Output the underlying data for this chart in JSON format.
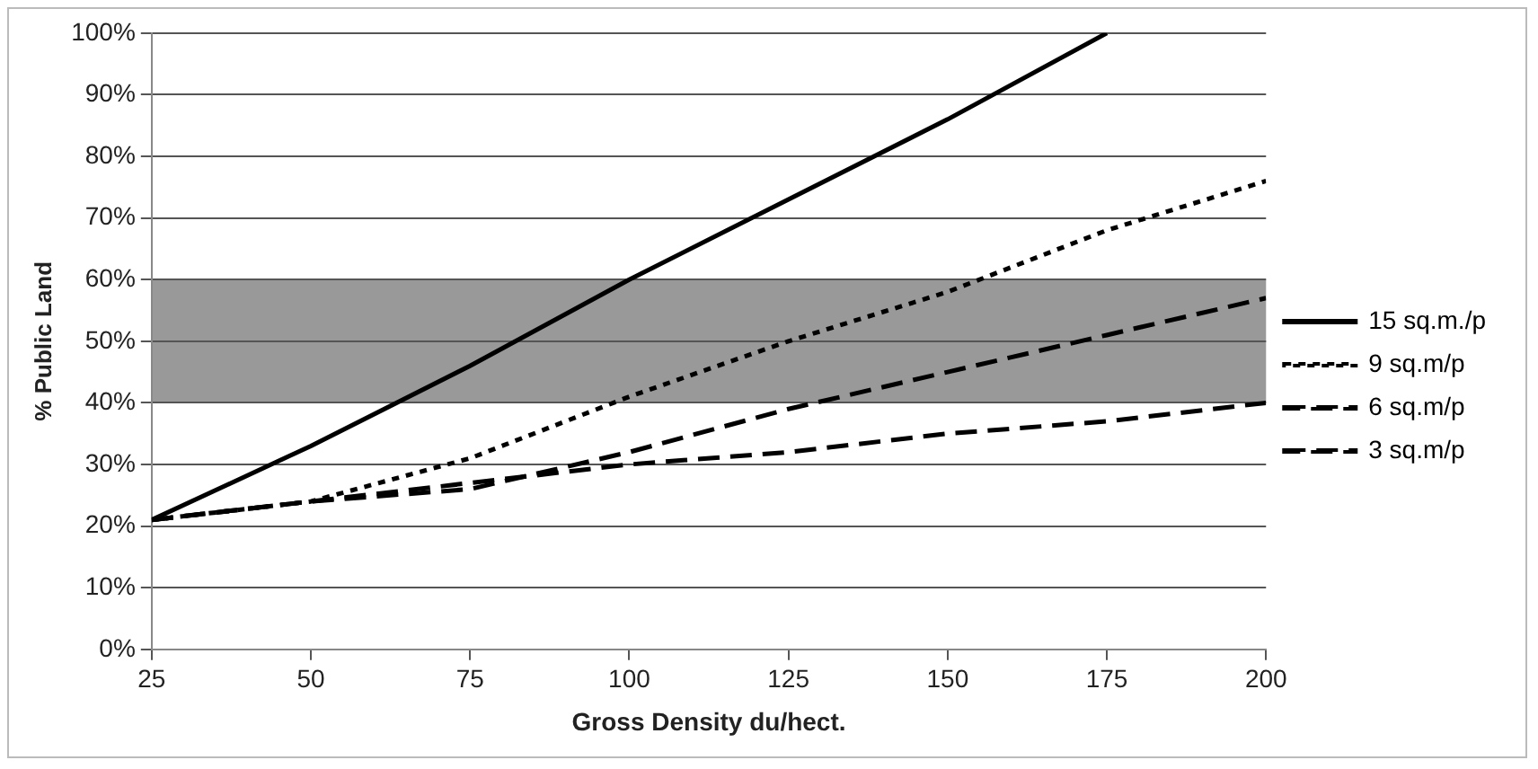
{
  "chart_data": {
    "type": "line",
    "xlabel": "Gross Density du/hect.",
    "ylabel": "% Public Land",
    "x": [
      25,
      50,
      75,
      100,
      125,
      150,
      175,
      200
    ],
    "xlim": [
      25,
      200
    ],
    "xticks": [
      25,
      50,
      75,
      100,
      125,
      150,
      175,
      200
    ],
    "ylim": [
      0,
      100
    ],
    "yticks": [
      {
        "value": 0,
        "label": "0%"
      },
      {
        "value": 10,
        "label": "10%"
      },
      {
        "value": 20,
        "label": "20%"
      },
      {
        "value": 30,
        "label": "30%"
      },
      {
        "value": 40,
        "label": "40%"
      },
      {
        "value": 50,
        "label": "50%"
      },
      {
        "value": 60,
        "label": "60%"
      },
      {
        "value": 70,
        "label": "70%"
      },
      {
        "value": 80,
        "label": "80%"
      },
      {
        "value": 90,
        "label": "90%"
      },
      {
        "value": 100,
        "label": "100%"
      }
    ],
    "series": [
      {
        "name": "15 sq.m./p",
        "color": "#000000",
        "line_style": "solid",
        "x": [
          25,
          50,
          75,
          100,
          125,
          150,
          175
        ],
        "values": [
          21,
          33,
          46,
          60,
          73,
          86,
          100
        ]
      },
      {
        "name": "9 sq.m/p",
        "color": "#000000",
        "line_style": "dotted",
        "values": [
          21,
          24,
          31,
          41,
          50,
          58,
          68,
          76
        ]
      },
      {
        "name": "6 sq.m/p",
        "color": "#000000",
        "line_style": "dashed",
        "values": [
          21,
          24,
          26,
          32,
          39,
          45,
          51,
          57
        ]
      },
      {
        "name": "3 sq.m/p",
        "color": "#000000",
        "line_style": "dashed",
        "values": [
          21,
          24,
          27,
          30,
          32,
          35,
          37,
          40
        ]
      }
    ],
    "bands": [
      {
        "axis": "y",
        "from": 40,
        "to": 60,
        "color": "#999999"
      }
    ],
    "grid": "y",
    "legend": "right",
    "marker": "none"
  }
}
